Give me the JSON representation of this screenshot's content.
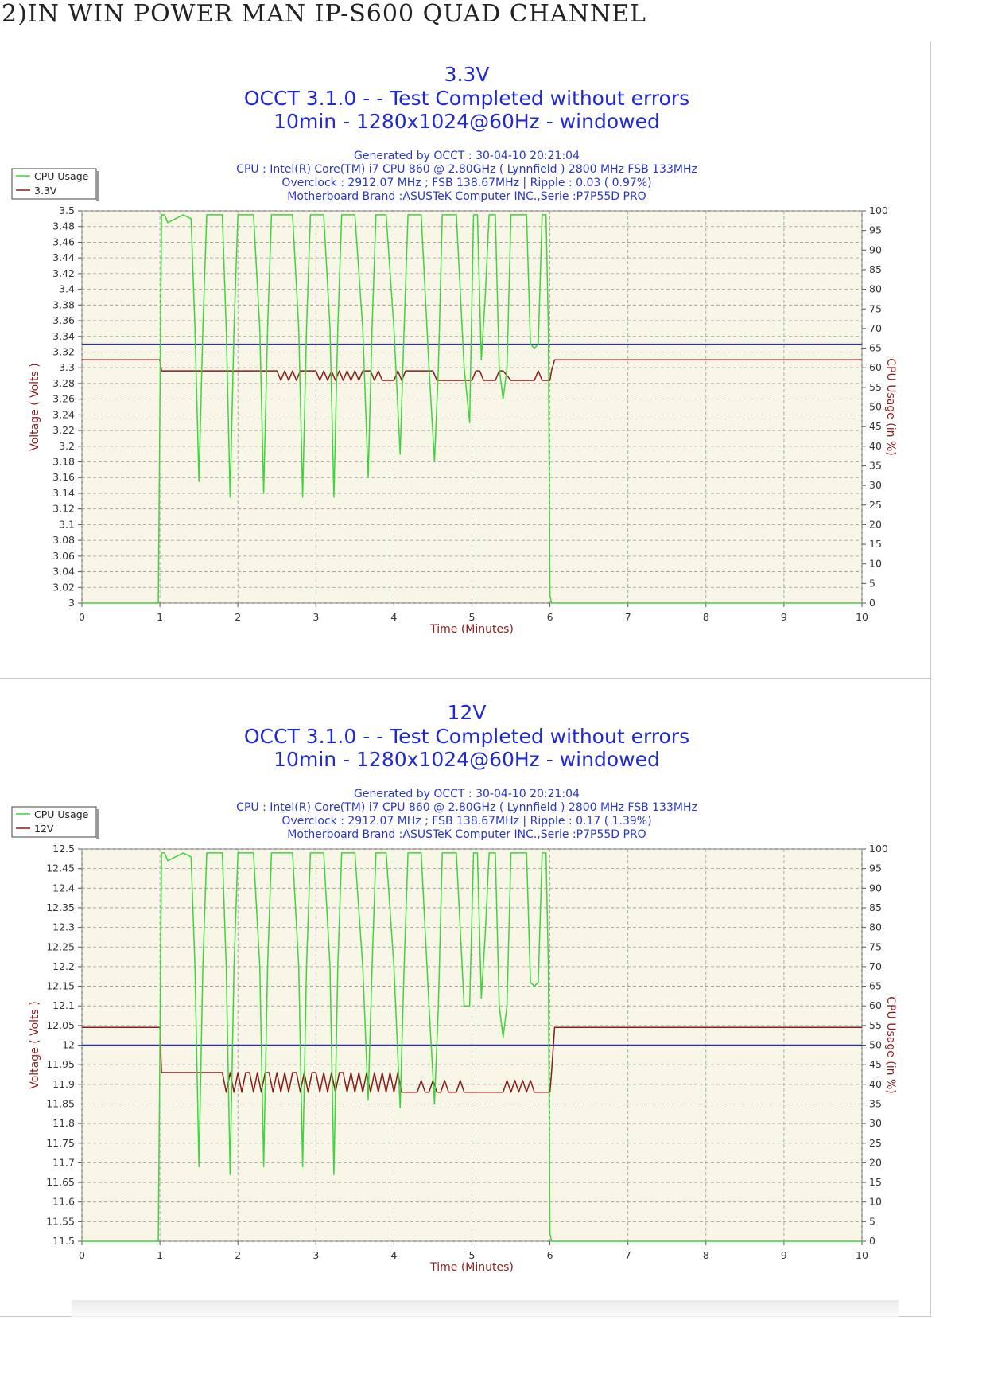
{
  "page": {
    "heading": "2)IN WIN POWER MAN IP-S600 QUAD CHANNEL"
  },
  "colors": {
    "plot_bg": "#f8f6e6",
    "cpu_usage": "#3ed43e",
    "voltage": "#8b1a1a",
    "nominal": "#2b2fb0",
    "title": "#1f28d6"
  },
  "chart_data": [
    {
      "type": "line",
      "title": "3.3V",
      "subtitle": [
        "OCCT 3.1.0 -  - Test Completed without errors",
        "10min - 1280x1024@60Hz - windowed"
      ],
      "info": [
        "Generated by OCCT : 30-04-10 20:21:04",
        "CPU : Intel(R) Core(TM) i7 CPU 860 @ 2.80GHz ( Lynnfield ) 2800 MHz FSB 133MHz",
        "Overclock : 2912.07 MHz ; FSB 138.67MHz | Ripple : 0.03 ( 0.97%)",
        "Motherboard Brand :ASUSTeK Computer INC.,Serie :P7P55D PRO"
      ],
      "legend": [
        "CPU Usage",
        "3.3V"
      ],
      "legend_position": "top-left",
      "xlabel": "Time (Minutes)",
      "ylabel": "Voltage ( Volts )",
      "y2label": "CPU Usage (in %)",
      "xlim": [
        0,
        10
      ],
      "ylim": [
        3.0,
        3.5
      ],
      "y2lim": [
        0,
        100
      ],
      "grid": true,
      "x_ticks": [
        "0",
        "1",
        "2",
        "3",
        "4",
        "5",
        "6",
        "7",
        "8",
        "9",
        "10"
      ],
      "y_ticks": [
        "3.5",
        "3.48",
        "3.46",
        "3.44",
        "3.42",
        "3.4",
        "3.38",
        "3.36",
        "3.34",
        "3.32",
        "3.3",
        "3.28",
        "3.26",
        "3.24",
        "3.22",
        "3.2",
        "3.18",
        "3.16",
        "3.14",
        "3.12",
        "3.1",
        "3.08",
        "3.06",
        "3.04",
        "3.02",
        "3"
      ],
      "y2_ticks": [
        "100",
        "95",
        "90",
        "85",
        "80",
        "75",
        "70",
        "65",
        "60",
        "55",
        "50",
        "45",
        "40",
        "35",
        "30",
        "25",
        "20",
        "15",
        "10",
        "5",
        "0"
      ],
      "nominal": 3.33,
      "series": [
        {
          "name": "3.3V",
          "axis": "left",
          "x": [
            0,
            1.0,
            1.02,
            1.08,
            2.0,
            2.5,
            2.55,
            2.6,
            2.65,
            2.7,
            2.75,
            2.8,
            3.0,
            3.05,
            3.1,
            3.15,
            3.2,
            3.25,
            3.3,
            3.35,
            3.4,
            3.45,
            3.5,
            3.55,
            3.6,
            3.7,
            3.75,
            3.8,
            3.85,
            3.9,
            4.0,
            4.05,
            4.1,
            4.15,
            4.5,
            4.55,
            4.6,
            5.0,
            5.05,
            5.1,
            5.15,
            5.3,
            5.35,
            5.4,
            5.5,
            5.8,
            5.85,
            5.9,
            5.95,
            6.0,
            6.02,
            6.06,
            10.0
          ],
          "y": [
            3.31,
            3.31,
            3.296,
            3.296,
            3.296,
            3.296,
            3.284,
            3.296,
            3.284,
            3.296,
            3.284,
            3.296,
            3.296,
            3.284,
            3.296,
            3.284,
            3.296,
            3.284,
            3.296,
            3.284,
            3.296,
            3.284,
            3.296,
            3.284,
            3.296,
            3.296,
            3.284,
            3.296,
            3.284,
            3.284,
            3.284,
            3.296,
            3.284,
            3.296,
            3.296,
            3.284,
            3.284,
            3.284,
            3.296,
            3.296,
            3.284,
            3.284,
            3.296,
            3.296,
            3.284,
            3.284,
            3.296,
            3.284,
            3.284,
            3.284,
            3.296,
            3.31,
            3.31
          ]
        },
        {
          "name": "CPU Usage",
          "axis": "right",
          "x": [
            0,
            0.98,
            1.02,
            1.06,
            1.1,
            1.3,
            1.4,
            1.45,
            1.5,
            1.55,
            1.6,
            1.8,
            1.85,
            1.9,
            1.95,
            2.0,
            2.2,
            2.28,
            2.33,
            2.38,
            2.43,
            2.7,
            2.78,
            2.83,
            2.88,
            2.93,
            3.1,
            3.18,
            3.23,
            3.28,
            3.33,
            3.5,
            3.6,
            3.67,
            3.72,
            3.77,
            3.9,
            4.0,
            4.08,
            4.13,
            4.18,
            4.35,
            4.45,
            4.52,
            4.57,
            4.62,
            4.8,
            4.9,
            4.97,
            5.02,
            5.07,
            5.12,
            5.17,
            5.22,
            5.3,
            5.35,
            5.4,
            5.45,
            5.5,
            5.7,
            5.75,
            5.8,
            5.85,
            5.9,
            5.95,
            5.98,
            6.0,
            6.02,
            6.05,
            10.0
          ],
          "y": [
            0,
            0,
            99,
            99,
            97,
            99,
            98,
            70,
            31,
            70,
            99,
            99,
            70,
            27,
            70,
            99,
            99,
            70,
            28,
            70,
            99,
            99,
            70,
            27,
            70,
            99,
            99,
            70,
            27,
            70,
            99,
            99,
            70,
            32,
            70,
            99,
            99,
            70,
            38,
            70,
            99,
            99,
            60,
            36,
            60,
            99,
            99,
            60,
            46,
            99,
            99,
            62,
            78,
            99,
            99,
            60,
            52,
            60,
            99,
            99,
            66,
            65,
            66,
            99,
            99,
            70,
            2,
            0,
            0,
            0
          ]
        }
      ]
    },
    {
      "type": "line",
      "title": "12V",
      "subtitle": [
        "OCCT 3.1.0 -  - Test Completed without errors",
        "10min - 1280x1024@60Hz - windowed"
      ],
      "info": [
        "Generated by OCCT : 30-04-10 20:21:04",
        "CPU : Intel(R) Core(TM) i7 CPU 860 @ 2.80GHz ( Lynnfield ) 2800 MHz FSB 133MHz",
        "Overclock : 2912.07 MHz ; FSB 138.67MHz | Ripple : 0.17 ( 1.39%)",
        "Motherboard Brand :ASUSTeK Computer INC.,Serie :P7P55D PRO"
      ],
      "legend": [
        "CPU Usage",
        "12V"
      ],
      "legend_position": "top-left",
      "xlabel": "Time (Minutes)",
      "ylabel": "Voltage ( Volts )",
      "y2label": "CPU Usage (in %)",
      "xlim": [
        0,
        10
      ],
      "ylim": [
        11.5,
        12.5
      ],
      "y2lim": [
        0,
        100
      ],
      "grid": true,
      "x_ticks": [
        "0",
        "1",
        "2",
        "3",
        "4",
        "5",
        "6",
        "7",
        "8",
        "9",
        "10"
      ],
      "y_ticks": [
        "12.5",
        "12.45",
        "12.4",
        "12.35",
        "12.3",
        "12.25",
        "12.2",
        "12.15",
        "12.1",
        "12.05",
        "12",
        "11.95",
        "11.9",
        "11.85",
        "11.8",
        "11.75",
        "11.7",
        "11.65",
        "11.6",
        "11.55",
        "11.5"
      ],
      "y2_ticks": [
        "100",
        "95",
        "90",
        "85",
        "80",
        "75",
        "70",
        "65",
        "60",
        "55",
        "50",
        "45",
        "40",
        "35",
        "30",
        "25",
        "20",
        "15",
        "10",
        "5",
        "0"
      ],
      "nominal": 12.0,
      "series": [
        {
          "name": "12V",
          "axis": "left",
          "x": [
            0,
            1.0,
            1.02,
            1.08,
            1.8,
            1.85,
            1.9,
            1.95,
            2.0,
            2.05,
            2.1,
            2.15,
            2.2,
            2.25,
            2.3,
            2.35,
            2.4,
            2.45,
            2.5,
            2.55,
            2.6,
            2.65,
            2.7,
            2.75,
            2.8,
            2.85,
            2.9,
            2.95,
            3.0,
            3.05,
            3.1,
            3.15,
            3.2,
            3.25,
            3.3,
            3.35,
            3.4,
            3.45,
            3.5,
            3.55,
            3.6,
            3.65,
            3.7,
            3.75,
            3.8,
            3.85,
            3.9,
            3.95,
            4.0,
            4.05,
            4.1,
            4.15,
            4.2,
            4.3,
            4.35,
            4.4,
            4.45,
            4.5,
            4.55,
            4.6,
            4.65,
            4.7,
            4.8,
            4.85,
            4.9,
            4.95,
            5.0,
            5.4,
            5.45,
            5.5,
            5.55,
            5.6,
            5.65,
            5.7,
            5.75,
            5.8,
            5.85,
            5.9,
            6.0,
            6.02,
            6.06,
            10.0
          ],
          "y": [
            12.045,
            12.045,
            11.93,
            11.93,
            11.93,
            11.88,
            11.93,
            11.88,
            11.93,
            11.88,
            11.93,
            11.93,
            11.88,
            11.93,
            11.88,
            11.93,
            11.93,
            11.88,
            11.93,
            11.88,
            11.93,
            11.88,
            11.93,
            11.93,
            11.88,
            11.93,
            11.88,
            11.93,
            11.93,
            11.88,
            11.93,
            11.88,
            11.93,
            11.88,
            11.93,
            11.93,
            11.88,
            11.93,
            11.88,
            11.93,
            11.88,
            11.93,
            11.88,
            11.93,
            11.88,
            11.93,
            11.88,
            11.93,
            11.88,
            11.93,
            11.88,
            11.88,
            11.88,
            11.88,
            11.91,
            11.88,
            11.88,
            11.91,
            11.88,
            11.88,
            11.91,
            11.88,
            11.88,
            11.91,
            11.88,
            11.88,
            11.88,
            11.88,
            11.91,
            11.88,
            11.91,
            11.88,
            11.91,
            11.88,
            11.91,
            11.88,
            11.88,
            11.88,
            11.88,
            11.93,
            12.045,
            12.045
          ]
        },
        {
          "name": "CPU Usage",
          "axis": "right",
          "x": [
            0,
            0.98,
            1.02,
            1.06,
            1.1,
            1.3,
            1.4,
            1.45,
            1.5,
            1.55,
            1.6,
            1.8,
            1.85,
            1.9,
            1.95,
            2.0,
            2.2,
            2.28,
            2.33,
            2.38,
            2.43,
            2.7,
            2.78,
            2.83,
            2.88,
            2.93,
            3.1,
            3.18,
            3.23,
            3.28,
            3.33,
            3.5,
            3.6,
            3.67,
            3.72,
            3.77,
            3.9,
            4.0,
            4.08,
            4.13,
            4.18,
            4.35,
            4.45,
            4.52,
            4.57,
            4.62,
            4.8,
            4.9,
            4.97,
            5.02,
            5.07,
            5.12,
            5.17,
            5.22,
            5.3,
            5.35,
            5.4,
            5.45,
            5.5,
            5.7,
            5.75,
            5.8,
            5.85,
            5.9,
            5.95,
            5.98,
            6.0,
            6.02,
            6.05,
            10.0
          ],
          "y": [
            0,
            0,
            99,
            99,
            97,
            99,
            98,
            70,
            19,
            70,
            99,
            99,
            70,
            17,
            70,
            99,
            99,
            70,
            19,
            70,
            99,
            99,
            70,
            19,
            70,
            99,
            99,
            70,
            17,
            70,
            99,
            99,
            70,
            36,
            70,
            99,
            99,
            70,
            34,
            70,
            99,
            99,
            60,
            35,
            60,
            99,
            99,
            60,
            60,
            99,
            99,
            62,
            78,
            99,
            99,
            60,
            52,
            60,
            99,
            99,
            66,
            65,
            66,
            99,
            99,
            70,
            2,
            0,
            0,
            0
          ]
        }
      ]
    }
  ]
}
